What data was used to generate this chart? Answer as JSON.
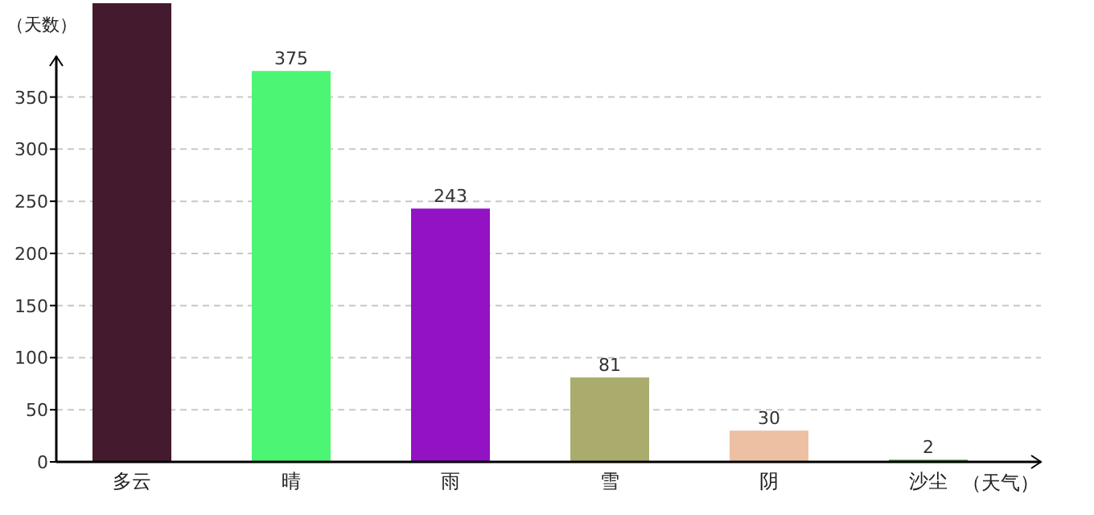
{
  "chart_data": {
    "type": "bar",
    "xlabel": "（天气）",
    "ylabel": "（天数）",
    "categories": [
      "多云",
      "晴",
      "雨",
      "雪",
      "阴",
      "沙尘"
    ],
    "values": [
      440,
      375,
      243,
      81,
      30,
      2
    ],
    "value_labels": [
      null,
      "375",
      "243",
      "81",
      "30",
      "2"
    ],
    "colors": [
      "#431a2e",
      "#4cf573",
      "#9212c4",
      "#aaac6e",
      "#edc0a4",
      "#3f8a3c"
    ],
    "ylim": [
      0,
      440
    ],
    "yticks": [
      0,
      50,
      100,
      150,
      200,
      250,
      300,
      350
    ],
    "grid": "y"
  }
}
